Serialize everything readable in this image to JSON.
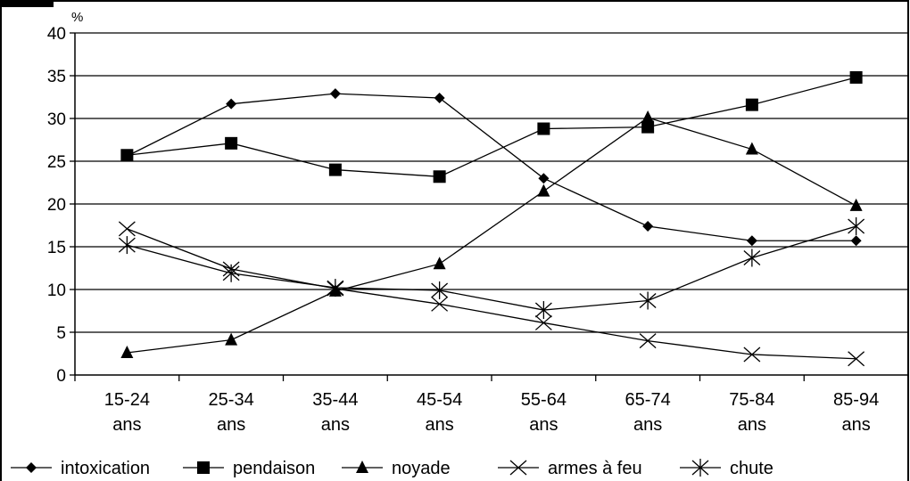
{
  "chart_data": {
    "type": "line",
    "ylabel": "%",
    "ylim": [
      0,
      40
    ],
    "yticks": [
      0,
      5,
      10,
      15,
      20,
      25,
      30,
      35,
      40
    ],
    "grid": true,
    "legend_position": "bottom",
    "categories": [
      [
        "15-24",
        "ans"
      ],
      [
        "25-34",
        "ans"
      ],
      [
        "35-44",
        "ans"
      ],
      [
        "45-54",
        "ans"
      ],
      [
        "55-64",
        "ans"
      ],
      [
        "65-74",
        "ans"
      ],
      [
        "75-84",
        "ans"
      ],
      [
        "85-94",
        "ans"
      ]
    ],
    "series": [
      {
        "name": "intoxication",
        "marker": "diamond",
        "values": [
          25.6,
          31.7,
          32.9,
          32.4,
          23.0,
          17.4,
          15.7,
          15.7
        ]
      },
      {
        "name": "pendaison",
        "marker": "square",
        "values": [
          25.7,
          27.1,
          24.0,
          23.2,
          28.8,
          29.0,
          31.6,
          34.8
        ]
      },
      {
        "name": "noyade",
        "marker": "triangle",
        "values": [
          2.6,
          4.1,
          9.8,
          13.0,
          21.5,
          30.1,
          26.4,
          19.8
        ]
      },
      {
        "name": "armes à feu",
        "marker": "x",
        "values": [
          17.1,
          12.4,
          10.1,
          8.3,
          6.1,
          4.0,
          2.4,
          1.9
        ]
      },
      {
        "name": "chute",
        "marker": "star",
        "values": [
          15.2,
          11.9,
          10.2,
          9.9,
          7.6,
          8.7,
          13.7,
          17.4
        ]
      }
    ]
  }
}
